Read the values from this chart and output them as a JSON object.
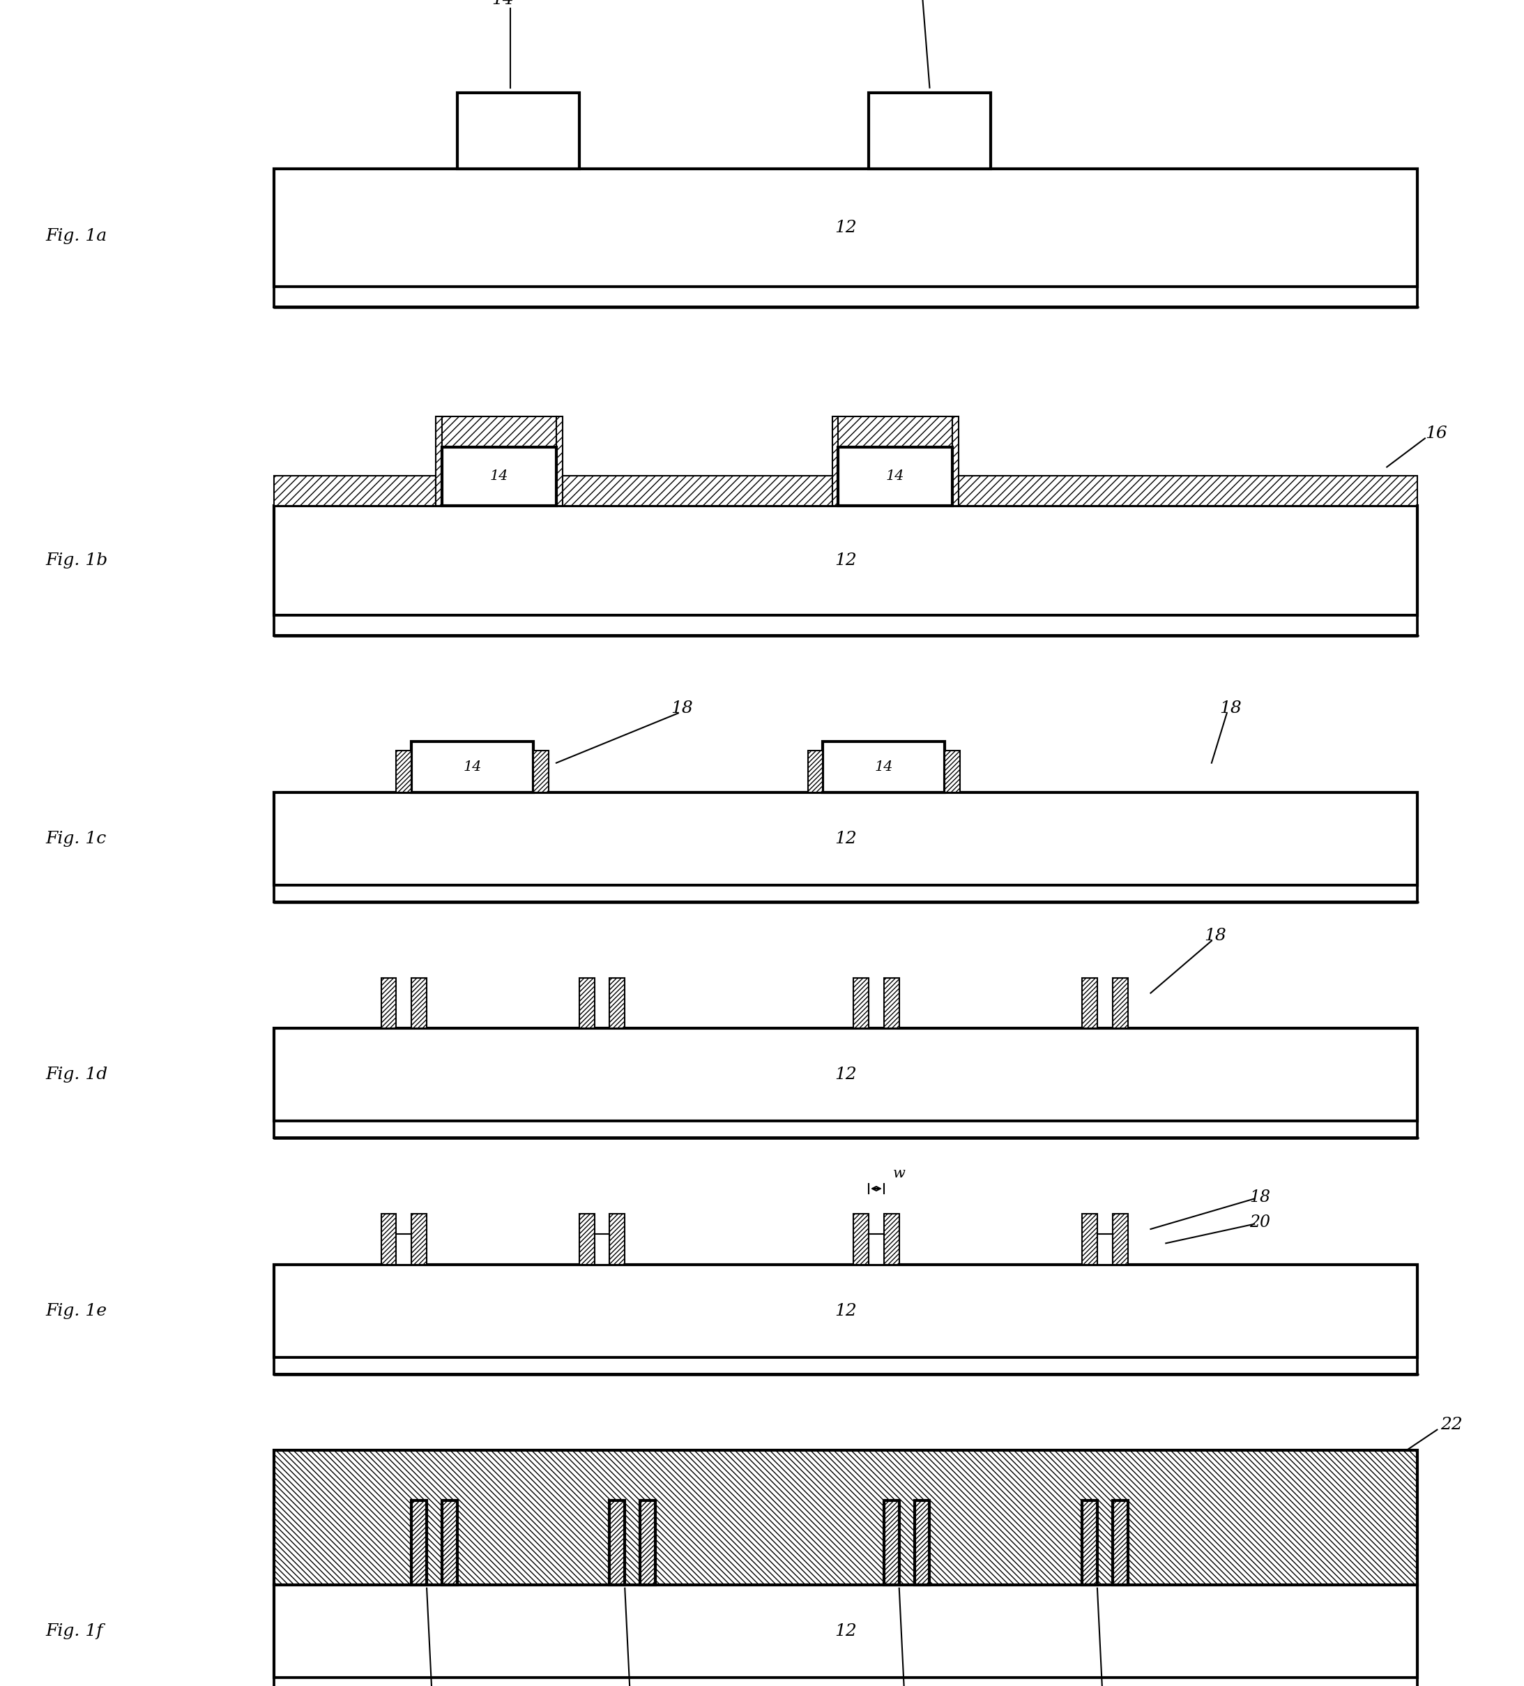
{
  "fig_labels": [
    "Fig. 1a",
    "Fig. 1b",
    "Fig. 1c",
    "Fig. 1d",
    "Fig. 1e",
    "Fig. 1f"
  ],
  "background_color": "#ffffff",
  "fig_width": 21.86,
  "fig_height": 24.17,
  "lw_main": 3.0,
  "lw_thin": 1.5,
  "font_size_label": 18,
  "font_size_fig": 18,
  "font_size_num": 16
}
